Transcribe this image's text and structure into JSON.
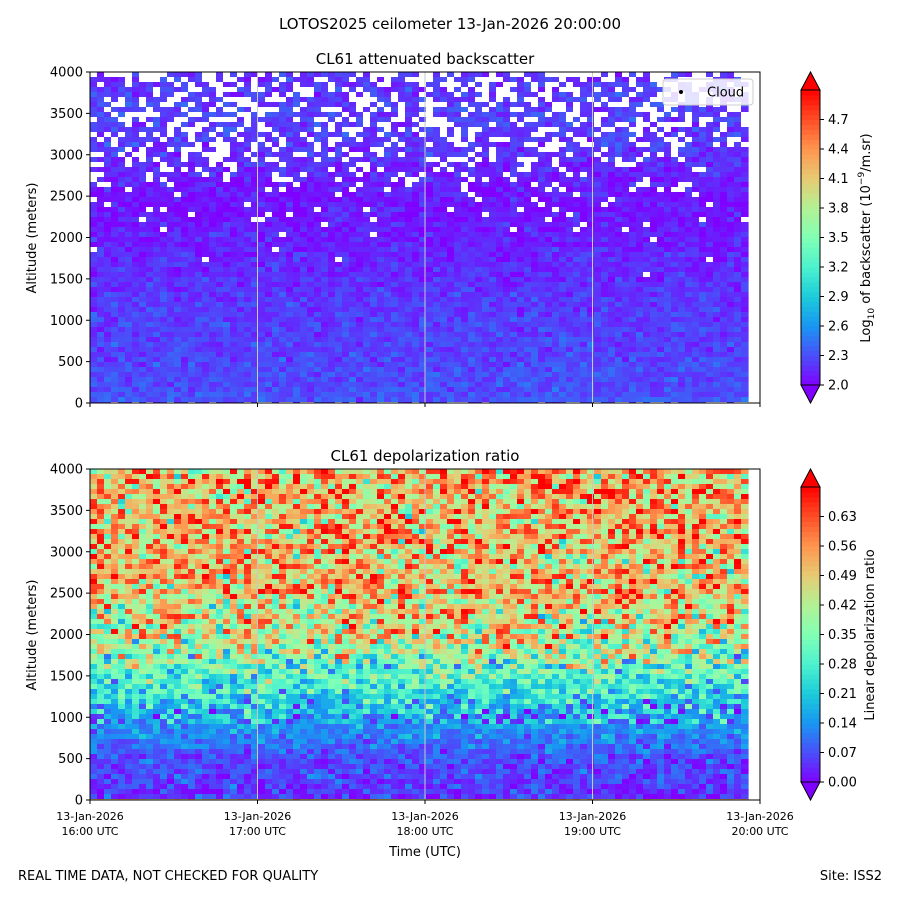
{
  "suptitle": "LOTOS2025 ceilometer 13-Jan-2026 20:00:00",
  "footer_left": "REAL TIME DATA, NOT CHECKED FOR QUALITY",
  "footer_right": "Site: ISS2",
  "colormap": [
    "#8000ff",
    "#4b4ef9",
    "#1996f3",
    "#1ccbda",
    "#4cf2ce",
    "#80ffb4",
    "#b2f295",
    "#e6cb73",
    "#ff964f",
    "#ff4e27",
    "#ff0000"
  ],
  "chart_data": [
    {
      "type": "heatmap",
      "title": "CL61 attenuated backscatter",
      "xlabel": "",
      "ylabel": "Altitude (meters)",
      "x_range": [
        "13-Jan-2026 16:00 UTC",
        "13-Jan-2026 20:00 UTC"
      ],
      "ylim": [
        0,
        4000
      ],
      "yticks": [
        0,
        500,
        1000,
        1500,
        2000,
        2500,
        3000,
        3500,
        4000
      ],
      "xticks_visible": false,
      "vertical_gridlines": [
        "17:00 UTC",
        "18:00 UTC",
        "19:00 UTC"
      ],
      "legend": {
        "entries": [
          "Cloud"
        ],
        "location": "top-right"
      },
      "colorbar": {
        "label": "Log10 of backscatter (10^-9/m.sr)",
        "label_parts": [
          "Log",
          "10",
          " of backscatter (10",
          "−9",
          "/m.sr)"
        ],
        "range": [
          2.0,
          5.0
        ],
        "ticks": [
          "2.0",
          "2.3",
          "2.6",
          "2.9",
          "3.2",
          "3.5",
          "3.8",
          "4.1",
          "4.4",
          "4.7"
        ],
        "tick_values": [
          2.0,
          2.3,
          2.6,
          2.9,
          3.2,
          3.5,
          3.8,
          4.1,
          4.4,
          4.7
        ],
        "extend": "both"
      },
      "field_profile": [
        {
          "altitude": 0,
          "value": 2.32,
          "clear_fraction": 0.0
        },
        {
          "altitude": 500,
          "value": 2.27,
          "clear_fraction": 0.0
        },
        {
          "altitude": 1000,
          "value": 2.24,
          "clear_fraction": 0.0
        },
        {
          "altitude": 1500,
          "value": 2.18,
          "clear_fraction": 0.0
        },
        {
          "altitude": 2000,
          "value": 2.12,
          "clear_fraction": 0.03
        },
        {
          "altitude": 2500,
          "value": 2.08,
          "clear_fraction": 0.1
        },
        {
          "altitude": 3000,
          "value": 2.2,
          "clear_fraction": 0.25
        },
        {
          "altitude": 3500,
          "value": 2.25,
          "clear_fraction": 0.35
        },
        {
          "altitude": 4000,
          "value": 2.2,
          "clear_fraction": 0.45
        }
      ]
    },
    {
      "type": "heatmap",
      "title": "CL61 depolarization ratio",
      "xlabel": "Time (UTC)",
      "ylabel": "Altitude (meters)",
      "x_range": [
        "13-Jan-2026 16:00 UTC",
        "13-Jan-2026 20:00 UTC"
      ],
      "ylim": [
        0,
        4000
      ],
      "yticks": [
        0,
        500,
        1000,
        1500,
        2000,
        2500,
        3000,
        3500,
        4000
      ],
      "xticks": [
        {
          "date": "13-Jan-2026",
          "time": "16:00 UTC"
        },
        {
          "date": "13-Jan-2026",
          "time": "17:00 UTC"
        },
        {
          "date": "13-Jan-2026",
          "time": "18:00 UTC"
        },
        {
          "date": "13-Jan-2026",
          "time": "19:00 UTC"
        },
        {
          "date": "13-Jan-2026",
          "time": "20:00 UTC"
        }
      ],
      "vertical_gridlines": [
        "17:00 UTC",
        "18:00 UTC",
        "19:00 UTC"
      ],
      "colorbar": {
        "label": "Linear depolarization ratio",
        "range": [
          0.0,
          0.7
        ],
        "ticks": [
          "0.00",
          "0.07",
          "0.14",
          "0.21",
          "0.28",
          "0.35",
          "0.42",
          "0.49",
          "0.56",
          "0.63"
        ],
        "tick_values": [
          0.0,
          0.07,
          0.14,
          0.21,
          0.28,
          0.35,
          0.42,
          0.49,
          0.56,
          0.63
        ],
        "extend": "both"
      },
      "field_profile": [
        {
          "altitude": 0,
          "value": 0.04,
          "clear_fraction": 0.0
        },
        {
          "altitude": 500,
          "value": 0.07,
          "clear_fraction": 0.0
        },
        {
          "altitude": 1000,
          "value": 0.16,
          "clear_fraction": 0.0
        },
        {
          "altitude": 1500,
          "value": 0.3,
          "clear_fraction": 0.0
        },
        {
          "altitude": 2000,
          "value": 0.43,
          "clear_fraction": 0.0
        },
        {
          "altitude": 2500,
          "value": 0.49,
          "clear_fraction": 0.0
        },
        {
          "altitude": 3000,
          "value": 0.5,
          "clear_fraction": 0.0
        },
        {
          "altitude": 3500,
          "value": 0.51,
          "clear_fraction": 0.0
        },
        {
          "altitude": 4000,
          "value": 0.5,
          "clear_fraction": 0.0
        }
      ]
    }
  ]
}
